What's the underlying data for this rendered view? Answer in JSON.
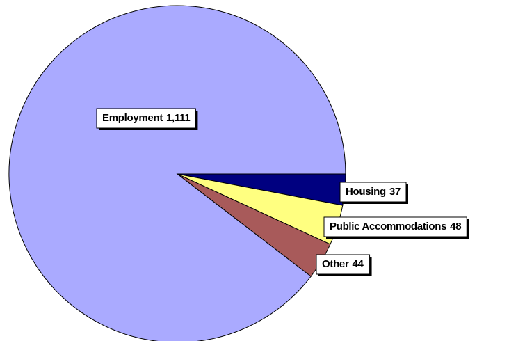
{
  "chart_data": {
    "type": "pie",
    "categories": [
      "Housing",
      "Public Accommodations",
      "Other",
      "Employment"
    ],
    "values": [
      37,
      48,
      44,
      1111
    ],
    "value_labels": [
      "37",
      "48",
      "44",
      "1,111"
    ],
    "colors": [
      "#000080",
      "#ffff80",
      "#a85a5a",
      "#aaaaff"
    ]
  }
}
